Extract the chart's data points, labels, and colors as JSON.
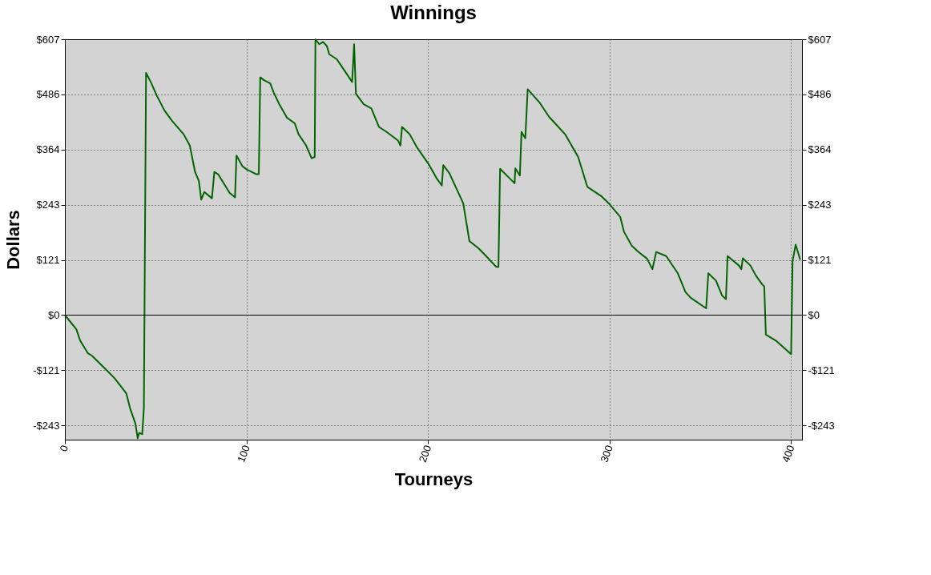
{
  "chart_data": {
    "type": "line",
    "title": "Winnings",
    "xlabel": "Tourneys",
    "ylabel": "Dollars",
    "x": [
      0,
      6.3,
      8.4,
      12.7,
      14.8,
      23.2,
      27.4,
      33.8,
      35.9,
      38.8,
      40.1,
      40.9,
      42.6,
      43.5,
      44.7,
      47.3,
      50.6,
      54.9,
      59.1,
      65.4,
      68.8,
      71.7,
      73.8,
      75.1,
      76.8,
      81,
      82.3,
      84.4,
      90.7,
      93.7,
      94.5,
      97.9,
      100.4,
      105.5,
      106.8,
      107.6,
      109.7,
      113.1,
      115.2,
      118.1,
      122.4,
      126.6,
      128.7,
      132.9,
      135.9,
      137.6,
      138,
      140.1,
      142.2,
      144.3,
      145.6,
      149.8,
      154,
      158.2,
      159.3,
      160.3,
      164.6,
      168.8,
      173,
      177.2,
      183.5,
      184.8,
      185.7,
      189.9,
      194.1,
      200.4,
      204.6,
      207.6,
      208.4,
      211.8,
      219.4,
      222.8,
      227.8,
      232,
      237.6,
      238.8,
      239.7,
      244.7,
      247.7,
      248.1,
      250.6,
      251.5,
      253.6,
      254.9,
      261.6,
      266.7,
      270,
      275.5,
      282.7,
      287.8,
      295.4,
      300,
      305.9,
      308,
      312.2,
      315.6,
      320.7,
      323.6,
      325.7,
      331.2,
      337.6,
      341.8,
      344.7,
      353.2,
      354.4,
      358.6,
      362,
      364.1,
      365,
      371.3,
      372.6,
      373.4,
      377.6,
      380.6,
      384,
      385.2,
      386.1,
      391.6,
      400,
      400.8,
      402.5,
      405
    ],
    "series": [
      {
        "color": "#006400",
        "values": [
          0,
          -31,
          -56,
          -84,
          -89,
          -122,
          -139,
          -172,
          -205,
          -238,
          -271,
          -259,
          -262,
          -205,
          533,
          513,
          483,
          450,
          427,
          398,
          373,
          315,
          295,
          254,
          271,
          257,
          315,
          310,
          269,
          259,
          351,
          327,
          320,
          310,
          310,
          523,
          517,
          510,
          488,
          464,
          434,
          422,
          398,
          373,
          345,
          348,
          607,
          596,
          601,
          592,
          574,
          563,
          538,
          513,
          596,
          487,
          464,
          455,
          414,
          403,
          384,
          373,
          414,
          398,
          368,
          332,
          302,
          285,
          330,
          312,
          246,
          163,
          147,
          130,
          106,
          106,
          322,
          302,
          290,
          323,
          307,
          403,
          389,
          497,
          467,
          436,
          422,
          398,
          348,
          282,
          262,
          244,
          216,
          183,
          153,
          140,
          124,
          101,
          139,
          130,
          92,
          51,
          38,
          15,
          92,
          76,
          43,
          35,
          130,
          109,
          101,
          125,
          109,
          87,
          68,
          63,
          -43,
          -56,
          -86,
          119,
          155,
          122
        ]
      }
    ],
    "xlim": [
      0,
      406
    ],
    "xticks": [
      0,
      100,
      200,
      300,
      400
    ],
    "ylim": [
      -274,
      607
    ],
    "yticks": [
      {
        "value": -242.8,
        "label": "-$243"
      },
      {
        "value": -121.4,
        "label": "-$121"
      },
      {
        "value": 0,
        "label": "$0"
      },
      {
        "value": 121.4,
        "label": "$121"
      },
      {
        "value": 242.8,
        "label": "$243"
      },
      {
        "value": 364.2,
        "label": "$364"
      },
      {
        "value": 485.6,
        "label": "$486"
      },
      {
        "value": 607,
        "label": "$607"
      }
    ],
    "y2lim": [
      -274,
      607
    ],
    "y2ticks": [
      {
        "value": -242.8,
        "label": "-$243"
      },
      {
        "value": -121.4,
        "label": "-$121"
      },
      {
        "value": 0,
        "label": "$0"
      },
      {
        "value": 121.4,
        "label": "$121"
      },
      {
        "value": 242.8,
        "label": "$243"
      },
      {
        "value": 364.2,
        "label": "$364"
      },
      {
        "value": 485.6,
        "label": "$486"
      },
      {
        "value": 607,
        "label": "$607"
      }
    ],
    "ref_lines": [
      {
        "axis": "y",
        "value": 0,
        "color": "#000000"
      }
    ],
    "grid": true,
    "marker": "none",
    "line_style": "solid"
  }
}
